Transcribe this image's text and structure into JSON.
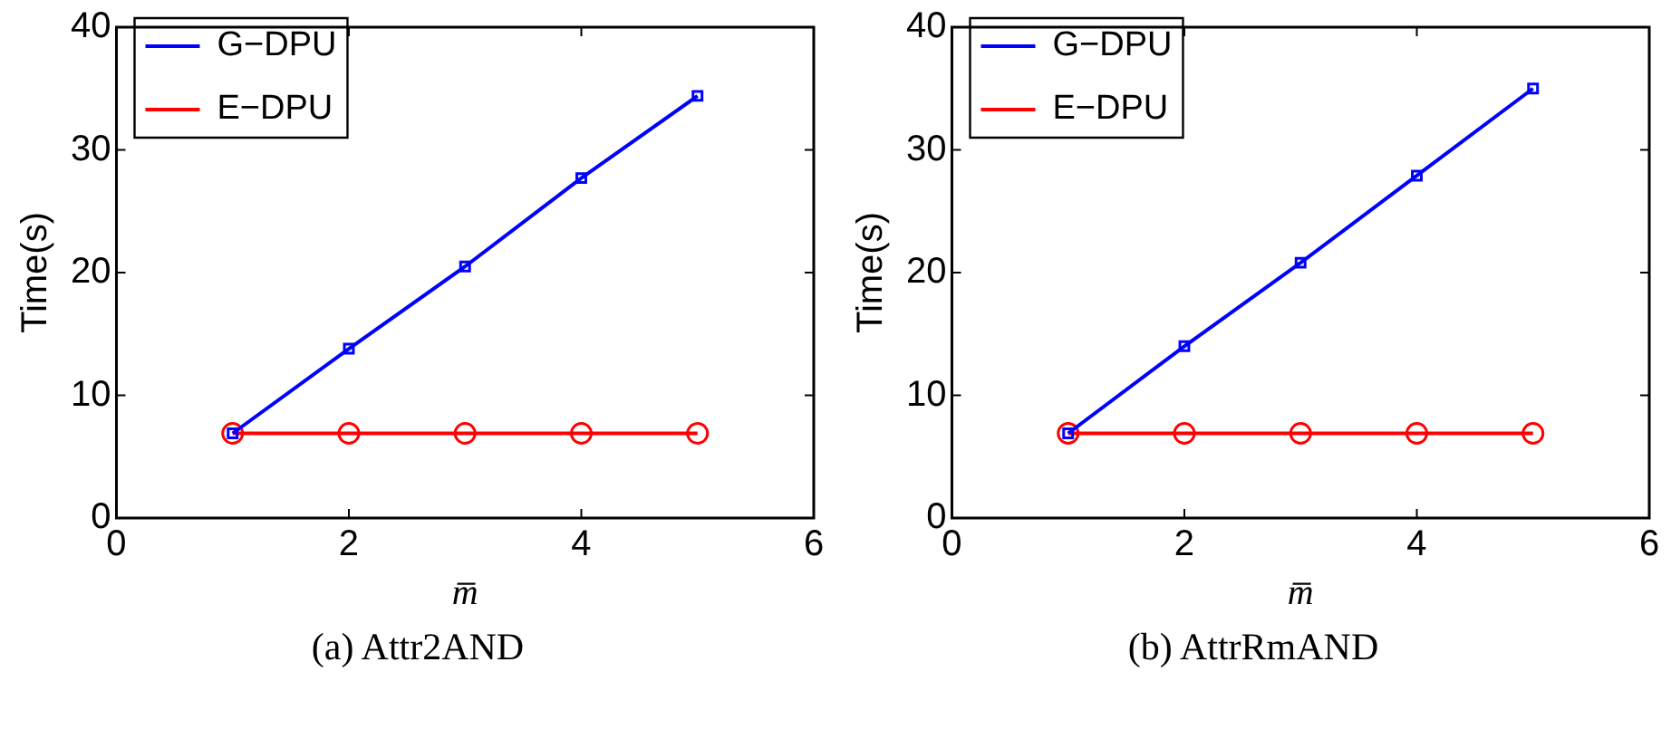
{
  "chart_data": [
    {
      "type": "line",
      "xlabel": "m̅",
      "ylabel": "Time(s)",
      "x": [
        1,
        2,
        3,
        4,
        5
      ],
      "xlim": [
        0,
        6
      ],
      "xticks": [
        0,
        2,
        4,
        6
      ],
      "ylim": [
        0,
        40
      ],
      "yticks": [
        0,
        10,
        20,
        30,
        40
      ],
      "grid": false,
      "legend": "top left",
      "annotations": [
        "(a) Attr2AND"
      ],
      "series": [
        {
          "name": "G−DPU",
          "color": "#0000ff",
          "marker": "square",
          "values": [
            6.9,
            13.8,
            20.5,
            27.7,
            34.4
          ]
        },
        {
          "name": "E−DPU",
          "color": "#ff0000",
          "marker": "circle",
          "values": [
            6.9,
            6.9,
            6.9,
            6.9,
            6.9
          ]
        }
      ]
    },
    {
      "type": "line",
      "xlabel": "m̅",
      "ylabel": "Time(s)",
      "x": [
        1,
        2,
        3,
        4,
        5
      ],
      "xlim": [
        0,
        6
      ],
      "xticks": [
        0,
        2,
        4,
        6
      ],
      "ylim": [
        0,
        40
      ],
      "yticks": [
        0,
        10,
        20,
        30,
        40
      ],
      "grid": false,
      "legend": "top left",
      "annotations": [
        "(b) AttrRmAND"
      ],
      "series": [
        {
          "name": "G−DPU",
          "color": "#0000ff",
          "marker": "square",
          "values": [
            6.9,
            14,
            20.8,
            27.9,
            35
          ]
        },
        {
          "name": "E−DPU",
          "color": "#ff0000",
          "marker": "circle",
          "values": [
            6.9,
            6.9,
            6.9,
            6.9,
            6.9
          ]
        }
      ]
    }
  ]
}
